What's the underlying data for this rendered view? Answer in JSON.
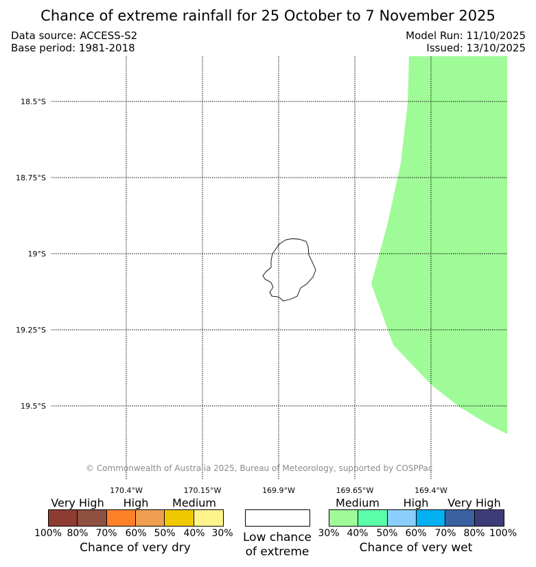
{
  "title": "Chance of extreme rainfall for 25 October to 7 November 2025",
  "data_source": "Data source: ACCESS-S2",
  "base_period": "Base period: 1981-2018",
  "model_run": "Model Run: 11/10/2025",
  "issued": "Issued: 13/10/2025",
  "copyright": "© Commonwealth of Australia 2025, Bureau of Meteorology, supported by COSPPac",
  "lat_labels": [
    "18.5°S",
    "18.75°S",
    "19°S",
    "19.25°S",
    "19.5°S"
  ],
  "lon_labels": [
    "170.4°W",
    "170.15°W",
    "169.9°W",
    "169.65°W",
    "169.4°W"
  ],
  "region_fill_color": "#9ffb97",
  "dry_legend": {
    "colors": [
      "#8e3c32",
      "#8e5040",
      "#ff8127",
      "#ef9f4f",
      "#f0c800",
      "#fff48c"
    ],
    "category_labels": [
      "Very High",
      "High",
      "Medium"
    ],
    "ticks": [
      "100%",
      "80%",
      "70%",
      "60%",
      "50%",
      "40%",
      "30%"
    ],
    "caption": "Chance of very dry"
  },
  "low_legend": {
    "color": "#ffffff",
    "caption_line1": "Low chance",
    "caption_line2": "of extreme"
  },
  "wet_legend": {
    "colors": [
      "#9ffb97",
      "#5bffa9",
      "#8bcefb",
      "#00b0f0",
      "#3a62a0",
      "#3e3c78"
    ],
    "category_labels": [
      "Medium",
      "High",
      "Very High"
    ],
    "ticks": [
      "30%",
      "40%",
      "50%",
      "60%",
      "70%",
      "80%",
      "100%"
    ],
    "caption": "Chance of very wet"
  }
}
